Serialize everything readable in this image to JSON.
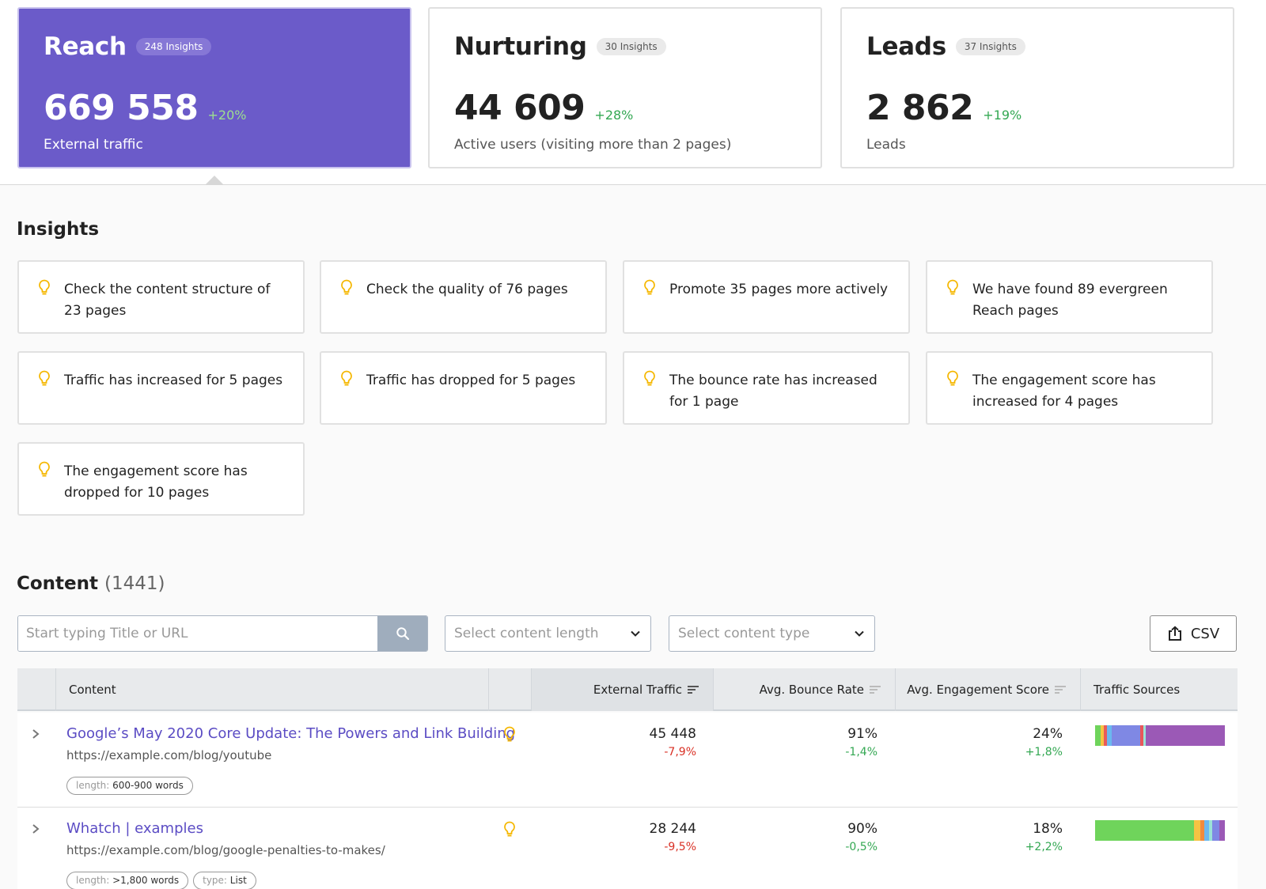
{
  "kpis": [
    {
      "title": "Reach",
      "badge": "248 Insights",
      "value": "669 558",
      "delta": "+20%",
      "caption": "External traffic",
      "active": true
    },
    {
      "title": "Nurturing",
      "badge": "30 Insights",
      "value": "44 609",
      "delta": "+28%",
      "caption": "Active users (visiting more than 2 pages)",
      "active": false
    },
    {
      "title": "Leads",
      "badge": "37 Insights",
      "value": "2 862",
      "delta": "+19%",
      "caption": "Leads",
      "active": false
    }
  ],
  "insights": {
    "title": "Insights",
    "items": [
      "Check the content structure of 23 pages",
      "Check the quality of 76 pages",
      "Promote 35 pages more actively",
      "We have found 89 evergreen Reach pages",
      "Traffic has increased for 5 pages",
      "Traffic has dropped for 5 pages",
      "The bounce rate has increased for 1 page",
      "The engagement score has increased for 4 pages",
      "The engagement score has dropped for 10 pages"
    ]
  },
  "content": {
    "title": "Content",
    "count": "(1441)",
    "search_placeholder": "Start typing Title or URL",
    "length_placeholder": "Select content length",
    "type_placeholder": "Select content type",
    "csv_label": "CSV",
    "columns": {
      "content": "Content",
      "external_traffic": "External Traffic",
      "bounce_rate": "Avg. Bounce Rate",
      "engagement": "Avg. Engagement Score",
      "sources": "Traffic Sources"
    },
    "rows": [
      {
        "title": "Google’s May 2020 Core Update: The Powers and Link Building",
        "url": "https://example.com/blog/youtube",
        "tags": [
          {
            "key": "length:",
            "value": "600-900 words"
          }
        ],
        "traffic": "45 448",
        "traffic_delta": "-7,9%",
        "bounce": "91%",
        "bounce_delta": "-1,4%",
        "engagement": "24%",
        "engagement_delta": "+1,8%",
        "sources": [
          {
            "color": "#6fd45b",
            "share": 0.04
          },
          {
            "color": "#f6c343",
            "share": 0.03
          },
          {
            "color": "#e85b5b",
            "share": 0.02
          },
          {
            "color": "#6bb8ef",
            "share": 0.04
          },
          {
            "color": "#7f88e4",
            "share": 0.22
          },
          {
            "color": "#e8575a",
            "share": 0.02
          },
          {
            "color": "#9be3d6",
            "share": 0.02
          },
          {
            "color": "#9b59b6",
            "share": 0.61
          }
        ]
      },
      {
        "title": "Whatch | examples",
        "url": "https://example.com/blog/google-penalties-to-makes/",
        "tags": [
          {
            "key": "length:",
            "value": ">1,800 words"
          },
          {
            "key": "type:",
            "value": "List"
          }
        ],
        "traffic": "28 244",
        "traffic_delta": "-9,5%",
        "bounce": "90%",
        "bounce_delta": "-0,5%",
        "engagement": "18%",
        "engagement_delta": "+2,2%",
        "sources": [
          {
            "color": "#6fd45b",
            "share": 0.76
          },
          {
            "color": "#f6c343",
            "share": 0.05
          },
          {
            "color": "#f08a3c",
            "share": 0.03
          },
          {
            "color": "#6bb8ef",
            "share": 0.04
          },
          {
            "color": "#9be3d6",
            "share": 0.02
          },
          {
            "color": "#7f88e4",
            "share": 0.06
          },
          {
            "color": "#9b59b6",
            "share": 0.04
          }
        ]
      }
    ]
  },
  "colors": {
    "accent": "#6b5bc9",
    "positive": "#34a853",
    "negative": "#d93025",
    "bulb": "#f5b700"
  }
}
